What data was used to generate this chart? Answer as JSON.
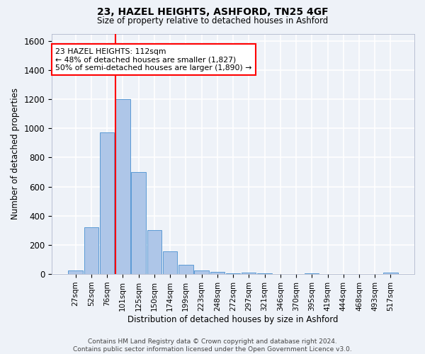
{
  "title1": "23, HAZEL HEIGHTS, ASHFORD, TN25 4GF",
  "title2": "Size of property relative to detached houses in Ashford",
  "xlabel": "Distribution of detached houses by size in Ashford",
  "ylabel": "Number of detached properties",
  "bin_labels": [
    "27sqm",
    "52sqm",
    "76sqm",
    "101sqm",
    "125sqm",
    "150sqm",
    "174sqm",
    "199sqm",
    "223sqm",
    "248sqm",
    "272sqm",
    "297sqm",
    "321sqm",
    "346sqm",
    "370sqm",
    "395sqm",
    "419sqm",
    "444sqm",
    "468sqm",
    "493sqm",
    "517sqm"
  ],
  "bar_values": [
    25,
    320,
    970,
    1200,
    700,
    300,
    155,
    65,
    25,
    15,
    5,
    10,
    5,
    0,
    0,
    5,
    0,
    0,
    0,
    0,
    10
  ],
  "bar_color": "#aec6e8",
  "bar_edge_color": "#5b9bd5",
  "vline_bin_index": 3,
  "vline_color": "red",
  "annotation_text": "23 HAZEL HEIGHTS: 112sqm\n← 48% of detached houses are smaller (1,827)\n50% of semi-detached houses are larger (1,890) →",
  "annotation_box_color": "white",
  "annotation_box_edge_color": "red",
  "ylim": [
    0,
    1650
  ],
  "yticks": [
    0,
    200,
    400,
    600,
    800,
    1000,
    1200,
    1400,
    1600
  ],
  "footer_text": "Contains HM Land Registry data © Crown copyright and database right 2024.\nContains public sector information licensed under the Open Government Licence v3.0.",
  "bg_color": "#eef2f8",
  "grid_color": "white"
}
